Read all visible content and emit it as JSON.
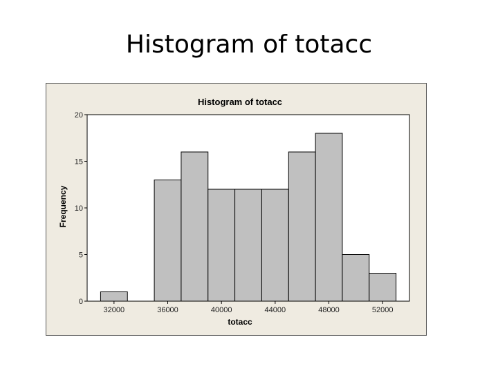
{
  "slide": {
    "title": "Histogram of totacc"
  },
  "chart_data": {
    "type": "bar",
    "title": "Histogram of totacc",
    "xlabel": "totacc",
    "ylabel": "Frequency",
    "bin_width": 2000,
    "bin_centers": [
      32000,
      34000,
      36000,
      38000,
      40000,
      42000,
      44000,
      46000,
      48000,
      50000,
      52000
    ],
    "values": [
      1,
      0,
      13,
      16,
      12,
      12,
      12,
      16,
      18,
      5,
      3
    ],
    "xticks": [
      32000,
      36000,
      40000,
      44000,
      48000,
      52000
    ],
    "xtick_labels": [
      "32000",
      "36000",
      "40000",
      "44000",
      "48000",
      "52000"
    ],
    "yticks": [
      0,
      5,
      10,
      15,
      20
    ],
    "ytick_labels": [
      "0",
      "5",
      "10",
      "15",
      "20"
    ],
    "xlim": [
      30000,
      54000
    ],
    "ylim": [
      0,
      20
    ],
    "grid": false,
    "colors": {
      "bar_fill": "#c0c0c0",
      "bar_stroke": "#000000",
      "panel_bg": "#efebe1",
      "plot_bg": "#ffffff"
    }
  }
}
